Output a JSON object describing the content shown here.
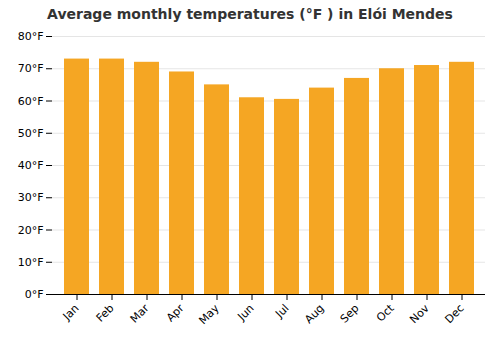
{
  "chart_data": {
    "type": "bar",
    "title": "Average monthly temperatures (°F ) in Elói Mendes",
    "categories": [
      "Jan",
      "Feb",
      "Mar",
      "Apr",
      "May",
      "Jun",
      "Jul",
      "Aug",
      "Sep",
      "Oct",
      "Nov",
      "Dec"
    ],
    "values": [
      73.0,
      73.0,
      72.0,
      69.0,
      65.0,
      61.0,
      60.5,
      64.0,
      67.0,
      70.0,
      71.0,
      72.0
    ],
    "color": "#F5A623",
    "ylim": [
      0,
      80
    ],
    "yticks": [
      {
        "value": 0,
        "label": "0°F"
      },
      {
        "value": 10,
        "label": "10°F"
      },
      {
        "value": 20,
        "label": "20°F"
      },
      {
        "value": 30,
        "label": "30°F"
      },
      {
        "value": 40,
        "label": "40°F"
      },
      {
        "value": 50,
        "label": "50°F"
      },
      {
        "value": 60,
        "label": "60°F"
      },
      {
        "value": 70,
        "label": "70°F"
      },
      {
        "value": 80,
        "label": "80°F"
      }
    ],
    "grid": true
  }
}
